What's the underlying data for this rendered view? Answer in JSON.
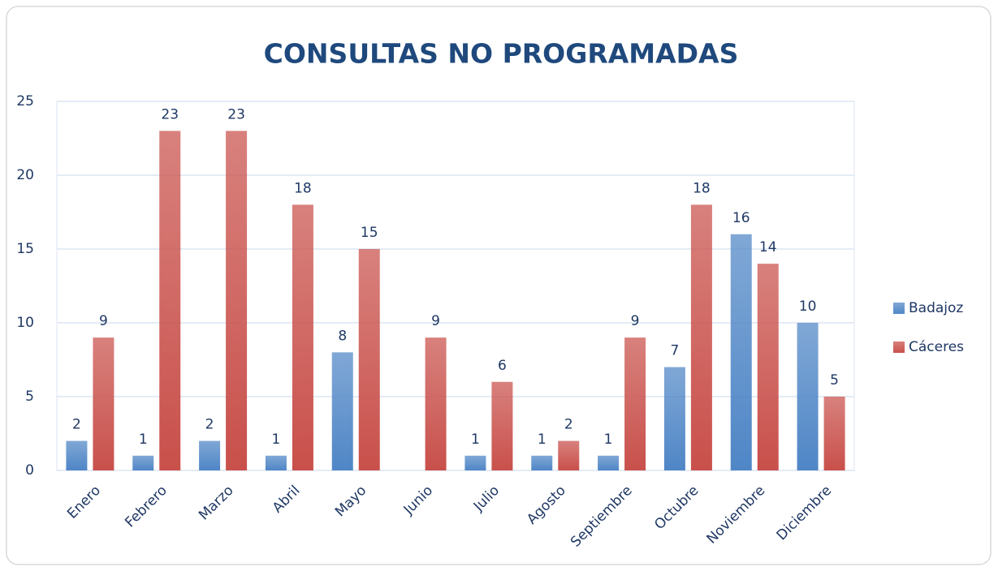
{
  "chart_data": {
    "type": "bar",
    "title": "CONSULTAS NO PROGRAMADAS",
    "categories": [
      "Enero",
      "Febrero",
      "Marzo",
      "Abril",
      "Mayo",
      "Junio",
      "Julio",
      "Agosto",
      "Septiembre",
      "Octubre",
      "Noviembre",
      "Diciembre"
    ],
    "series": [
      {
        "name": "Badajoz",
        "color": "#4f86c6",
        "values": [
          2,
          1,
          2,
          1,
          8,
          null,
          1,
          1,
          1,
          7,
          16,
          10
        ]
      },
      {
        "name": "Cáceres",
        "color": "#c9504b",
        "values": [
          9,
          23,
          23,
          18,
          15,
          9,
          6,
          2,
          9,
          18,
          14,
          5
        ]
      }
    ],
    "ylim": [
      0,
      25
    ],
    "yticks": [
      0,
      5,
      10,
      15,
      20,
      25
    ],
    "grid": true,
    "legend": "right"
  }
}
